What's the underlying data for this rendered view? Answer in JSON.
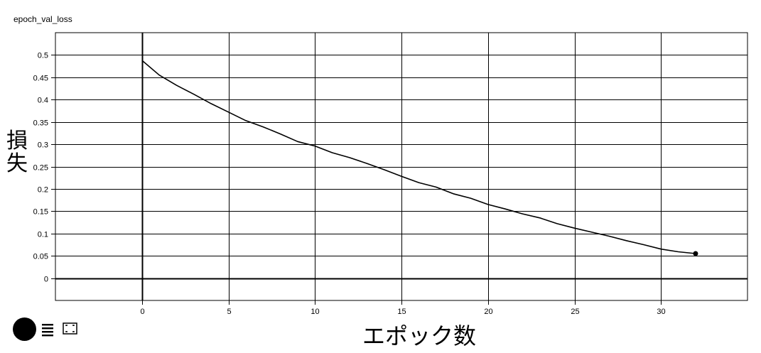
{
  "chart_data": {
    "type": "line",
    "title": "epoch_val_loss",
    "xlabel": "エポック数",
    "ylabel": "損失",
    "xlim": [
      -5,
      35
    ],
    "ylim": [
      -0.05,
      0.55
    ],
    "x_ticks": [
      0,
      5,
      10,
      15,
      20,
      25,
      30
    ],
    "y_ticks": [
      0,
      0.05,
      0.1,
      0.15,
      0.2,
      0.25,
      0.3,
      0.35,
      0.4,
      0.45,
      0.5
    ],
    "y_tick_labels": [
      "0",
      "0.05",
      "0.1",
      "0.15",
      "0.2",
      "0.25",
      "0.3",
      "0.35",
      "0.4",
      "0.45",
      "0.5"
    ],
    "grid": true,
    "series": [
      {
        "name": "epoch_val_loss",
        "color": "#000000",
        "x": [
          0,
          1,
          2,
          3,
          4,
          5,
          6,
          7,
          8,
          9,
          10,
          11,
          12,
          13,
          14,
          15,
          16,
          17,
          18,
          19,
          20,
          21,
          22,
          23,
          24,
          25,
          26,
          27,
          28,
          29,
          30,
          31,
          32
        ],
        "y": [
          0.488,
          0.455,
          0.432,
          0.412,
          0.391,
          0.372,
          0.353,
          0.339,
          0.323,
          0.306,
          0.296,
          0.281,
          0.27,
          0.257,
          0.243,
          0.228,
          0.214,
          0.204,
          0.189,
          0.179,
          0.165,
          0.155,
          0.144,
          0.135,
          0.122,
          0.112,
          0.103,
          0.094,
          0.084,
          0.075,
          0.065,
          0.059,
          0.055
        ]
      }
    ]
  },
  "toolbar": {
    "buttons": [
      "toggle-log-scale",
      "toggle-data-table",
      "fit-domain"
    ]
  }
}
